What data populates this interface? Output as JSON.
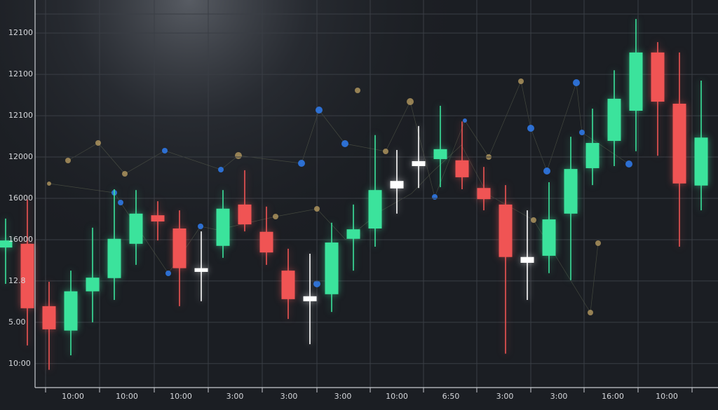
{
  "chart_data": {
    "type": "candlestick",
    "categories": [
      null,
      null,
      null,
      null,
      null,
      null,
      null,
      null,
      null,
      null,
      null,
      null,
      null,
      null,
      null,
      null,
      null,
      null,
      null,
      null,
      null,
      null,
      null,
      null,
      null,
      null,
      null,
      null,
      null,
      null,
      null,
      null,
      null
    ],
    "open": [
      2.81,
      2.9,
      1.39,
      0.8,
      1.75,
      2.07,
      2.9,
      3.59,
      3.27,
      2.31,
      2.85,
      3.85,
      3.19,
      2.25,
      1.63,
      1.68,
      3.02,
      3.27,
      4.24,
      4.78,
      4.95,
      4.92,
      4.25,
      3.85,
      2.58,
      2.61,
      3.63,
      4.73,
      5.39,
      6.12,
      7.53,
      6.29,
      4.31
    ],
    "high": [
      3.51,
      3.97,
      1.98,
      2.25,
      3.29,
      4.22,
      4.2,
      3.93,
      3.71,
      3.2,
      4.2,
      4.68,
      3.8,
      2.78,
      2.66,
      3.41,
      3.85,
      5.53,
      5.17,
      5.75,
      6.24,
      5.86,
      4.76,
      4.32,
      3.71,
      4.39,
      5.49,
      6.17,
      7.1,
      8.34,
      7.78,
      7.53,
      6.85
    ],
    "low": [
      1.93,
      0.44,
      -0.15,
      0.2,
      1.0,
      1.54,
      2.39,
      2.98,
      1.39,
      1.51,
      2.56,
      3.2,
      2.39,
      1.08,
      0.47,
      1.25,
      2.25,
      2.83,
      3.63,
      4.25,
      4.27,
      4.22,
      3.71,
      0.24,
      1.54,
      2.19,
      2.02,
      4.32,
      4.78,
      5.14,
      5.03,
      2.83,
      3.71
    ],
    "close": [
      2.98,
      1.34,
      0.83,
      1.75,
      2.08,
      3.02,
      3.63,
      3.44,
      2.31,
      2.22,
      3.75,
      3.37,
      2.69,
      1.56,
      1.51,
      2.93,
      3.25,
      4.2,
      4.42,
      4.9,
      5.19,
      4.51,
      3.98,
      2.58,
      2.44,
      3.49,
      4.71,
      5.34,
      6.41,
      7.53,
      6.34,
      4.36,
      5.47
    ],
    "colors": [
      "#3be39c",
      "#f05454",
      "#f05454",
      "#3be39c",
      "#3be39c",
      "#3be39c",
      "#3be39c",
      "#f05454",
      "#f05454",
      "#ffffff",
      "#3be39c",
      "#f05454",
      "#f05454",
      "#f05454",
      "#ffffff",
      "#3be39c",
      "#3be39c",
      "#3be39c",
      "#ffffff",
      "#ffffff",
      "#3be39c",
      "#f05454",
      "#f05454",
      "#f05454",
      "#ffffff",
      "#3be39c",
      "#3be39c",
      "#3be39c",
      "#3be39c",
      "#3be39c",
      "#f05454",
      "#f05454",
      "#3be39c"
    ],
    "ylim": [
      -0.58,
      8.8
    ],
    "yticks": [
      {
        "value": 8,
        "label": "12100"
      },
      {
        "value": 7,
        "label": "12100"
      },
      {
        "value": 6,
        "label": "12100"
      },
      {
        "value": 5,
        "label": "12000"
      },
      {
        "value": 4,
        "label": "16000"
      },
      {
        "value": 3,
        "label": "16000"
      },
      {
        "value": 2,
        "label": "12.8"
      },
      {
        "value": 1,
        "label": "5.00"
      },
      {
        "value": 0,
        "label": "10:00"
      }
    ],
    "xtick_labels": [
      "10:00",
      "10:00",
      "10:00",
      "3:00",
      "3:00",
      "3:00",
      "10:00",
      "6:50",
      "3:00",
      "3:00",
      "16:00",
      "10:00"
    ],
    "grid": true
  }
}
